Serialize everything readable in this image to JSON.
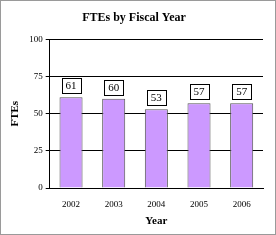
{
  "chart_data": {
    "type": "bar",
    "title": "FTEs by Fiscal Year",
    "x_label": "Year",
    "y_label": "FTEs",
    "categories": [
      "2002",
      "2003",
      "2004",
      "2005",
      "2006"
    ],
    "values": [
      61,
      60,
      53,
      57,
      57
    ],
    "color": "#cc99ff",
    "ylim": [
      0,
      100
    ],
    "yticks": [
      0,
      25,
      50,
      75,
      100
    ],
    "grid": true,
    "data_labels": true
  }
}
